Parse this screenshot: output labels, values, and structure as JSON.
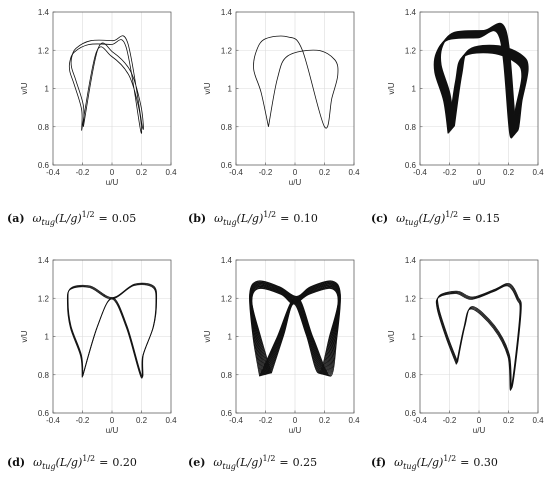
{
  "panel_labels": [
    "(a)",
    "(b)",
    "(c)",
    "(d)",
    "(e)",
    "(f)"
  ],
  "caption_formula": {
    "omega": "ω",
    "subscript": "tug",
    "middle": "(L/g)",
    "superscript": "1/2",
    "equals": "="
  },
  "colors": {
    "curve": "#111111",
    "grid": "#dcdcdc",
    "axis": "#555555"
  },
  "chart_data": [
    {
      "type": "line",
      "panel": "(a)",
      "value": "0.05",
      "xlabel": "u/U",
      "ylabel": "v/U",
      "xlim": [
        -0.4,
        0.4
      ],
      "ylim": [
        0.6,
        1.4
      ],
      "xticks": [
        "-0.4",
        "-0.2",
        "0",
        "0.2",
        "0.4"
      ],
      "yticks": [
        "0.6",
        "0.8",
        "1",
        "1.2",
        "1.4"
      ],
      "grid": true,
      "loops": 2,
      "spread": 0.02,
      "drift": 0,
      "variant": "flat",
      "series": [
        {
          "points": [
            [
              -0.2,
              0.79
            ],
            [
              -0.2,
              0.9
            ],
            [
              -0.25,
              1.03
            ],
            [
              -0.28,
              1.1
            ],
            [
              -0.28,
              1.15
            ],
            [
              -0.25,
              1.2
            ],
            [
              -0.15,
              1.24
            ],
            [
              0,
              1.24
            ],
            [
              0.1,
              1.23
            ],
            [
              0.2,
              0.79
            ],
            [
              0.19,
              0.9
            ],
            [
              0.12,
              1.08
            ],
            [
              0,
              1.18
            ],
            [
              -0.1,
              1.2
            ],
            [
              -0.2,
              0.79
            ]
          ]
        }
      ]
    },
    {
      "type": "line",
      "panel": "(b)",
      "value": "0.10",
      "xlabel": "u/U",
      "ylabel": "v/U",
      "xlim": [
        -0.4,
        0.4
      ],
      "ylim": [
        0.6,
        1.4
      ],
      "xticks": [
        "-0.4",
        "-0.2",
        "0",
        "0.2",
        "0.4"
      ],
      "yticks": [
        "0.6",
        "0.8",
        "1",
        "1.2",
        "1.4"
      ],
      "grid": true,
      "loops": 1,
      "spread": 0,
      "drift": 0,
      "variant": "skew",
      "series": [
        {
          "points": [
            [
              -0.18,
              0.8
            ],
            [
              -0.23,
              0.98
            ],
            [
              -0.28,
              1.1
            ],
            [
              -0.26,
              1.2
            ],
            [
              -0.2,
              1.26
            ],
            [
              -0.05,
              1.27
            ],
            [
              0.05,
              1.2
            ],
            [
              0.2,
              0.8
            ],
            [
              0.25,
              0.95
            ],
            [
              0.29,
              1.07
            ],
            [
              0.27,
              1.15
            ],
            [
              0.15,
              1.2
            ],
            [
              -0.05,
              1.17
            ],
            [
              -0.12,
              1.05
            ],
            [
              -0.18,
              0.8
            ]
          ]
        }
      ]
    },
    {
      "type": "line",
      "panel": "(c)",
      "value": "0.15",
      "xlabel": "u/U",
      "ylabel": "v/U",
      "xlim": [
        -0.4,
        0.4
      ],
      "ylim": [
        0.6,
        1.4
      ],
      "xticks": [
        "-0.4",
        "-0.2",
        "0",
        "0.2",
        "0.4"
      ],
      "yticks": [
        "0.6",
        "0.8",
        "1",
        "1.2",
        "1.4"
      ],
      "grid": true,
      "loops": 14,
      "spread": 0.03,
      "drift": 0.006,
      "variant": "thick",
      "series": [
        {
          "points": [
            [
              -0.2,
              0.78
            ],
            [
              -0.23,
              0.95
            ],
            [
              -0.29,
              1.1
            ],
            [
              -0.28,
              1.2
            ],
            [
              -0.2,
              1.27
            ],
            [
              0,
              1.28
            ],
            [
              0.15,
              1.28
            ],
            [
              0.22,
              0.77
            ],
            [
              0.26,
              0.92
            ],
            [
              0.3,
              1.08
            ],
            [
              0.26,
              1.15
            ],
            [
              0.1,
              1.2
            ],
            [
              -0.1,
              1.18
            ],
            [
              -0.15,
              1.05
            ],
            [
              -0.2,
              0.78
            ]
          ]
        }
      ]
    },
    {
      "type": "line",
      "panel": "(d)",
      "value": "0.20",
      "xlabel": "u/U",
      "ylabel": "v/U",
      "xlim": [
        -0.4,
        0.4
      ],
      "ylim": [
        0.6,
        1.4
      ],
      "xticks": [
        "-0.4",
        "-0.2",
        "0",
        "0.2",
        "0.4"
      ],
      "yticks": [
        "0.6",
        "0.8",
        "1",
        "1.2",
        "1.4"
      ],
      "grid": true,
      "loops": 3,
      "spread": 0.008,
      "drift": 0,
      "variant": "wavy",
      "series": [
        {
          "points": [
            [
              -0.2,
              0.79
            ],
            [
              -0.21,
              0.9
            ],
            [
              -0.28,
              1.05
            ],
            [
              -0.3,
              1.18
            ],
            [
              -0.28,
              1.25
            ],
            [
              -0.15,
              1.26
            ],
            [
              0,
              1.2
            ],
            [
              0.15,
              1.27
            ],
            [
              0.28,
              1.26
            ],
            [
              0.3,
              1.18
            ],
            [
              0.28,
              1.05
            ],
            [
              0.21,
              0.9
            ],
            [
              0.2,
              0.79
            ],
            [
              0.1,
              1.05
            ],
            [
              0,
              1.2
            ],
            [
              -0.1,
              1.05
            ],
            [
              -0.2,
              0.79
            ]
          ]
        }
      ]
    },
    {
      "type": "line",
      "panel": "(e)",
      "value": "0.25",
      "xlabel": "u/U",
      "ylabel": "v/U",
      "xlim": [
        -0.4,
        0.4
      ],
      "ylim": [
        0.6,
        1.4
      ],
      "xticks": [
        "-0.4",
        "-0.2",
        "0",
        "0.2",
        "0.4"
      ],
      "yticks": [
        "0.6",
        "0.8",
        "1",
        "1.2",
        "1.4"
      ],
      "grid": true,
      "loops": 14,
      "spread": 0.08,
      "drift": 0.012,
      "variant": "fan",
      "series": [
        {
          "points": [
            [
              -0.2,
              0.8
            ],
            [
              -0.26,
              1.0
            ],
            [
              -0.3,
              1.2
            ],
            [
              -0.25,
              1.27
            ],
            [
              -0.1,
              1.24
            ],
            [
              0,
              1.19
            ],
            [
              0.1,
              1.24
            ],
            [
              0.25,
              1.27
            ],
            [
              0.3,
              1.2
            ],
            [
              0.26,
              1.0
            ],
            [
              0.2,
              0.8
            ],
            [
              0.1,
              1.0
            ],
            [
              0,
              1.19
            ],
            [
              -0.1,
              1.0
            ],
            [
              -0.2,
              0.8
            ]
          ]
        }
      ]
    },
    {
      "type": "line",
      "panel": "(f)",
      "value": "0.30",
      "xlabel": "u/U",
      "ylabel": "v/U",
      "xlim": [
        -0.4,
        0.4
      ],
      "ylim": [
        0.6,
        1.4
      ],
      "xticks": [
        "-0.4",
        "-0.2",
        "0",
        "0.2",
        "0.4"
      ],
      "yticks": [
        "0.6",
        "0.8",
        "1",
        "1.2",
        "1.4"
      ],
      "grid": true,
      "loops": 4,
      "spread": 0.012,
      "drift": 0.002,
      "variant": "asym",
      "series": [
        {
          "points": [
            [
              -0.15,
              0.86
            ],
            [
              -0.22,
              1.0
            ],
            [
              -0.28,
              1.15
            ],
            [
              -0.27,
              1.21
            ],
            [
              -0.15,
              1.23
            ],
            [
              -0.05,
              1.2
            ],
            [
              0.1,
              1.24
            ],
            [
              0.2,
              1.27
            ],
            [
              0.26,
              1.2
            ],
            [
              0.28,
              1.12
            ],
            [
              0.22,
              0.73
            ],
            [
              0.2,
              0.9
            ],
            [
              0.1,
              1.05
            ],
            [
              -0.05,
              1.15
            ],
            [
              -0.1,
              1.05
            ],
            [
              -0.15,
              0.86
            ]
          ]
        }
      ]
    }
  ]
}
